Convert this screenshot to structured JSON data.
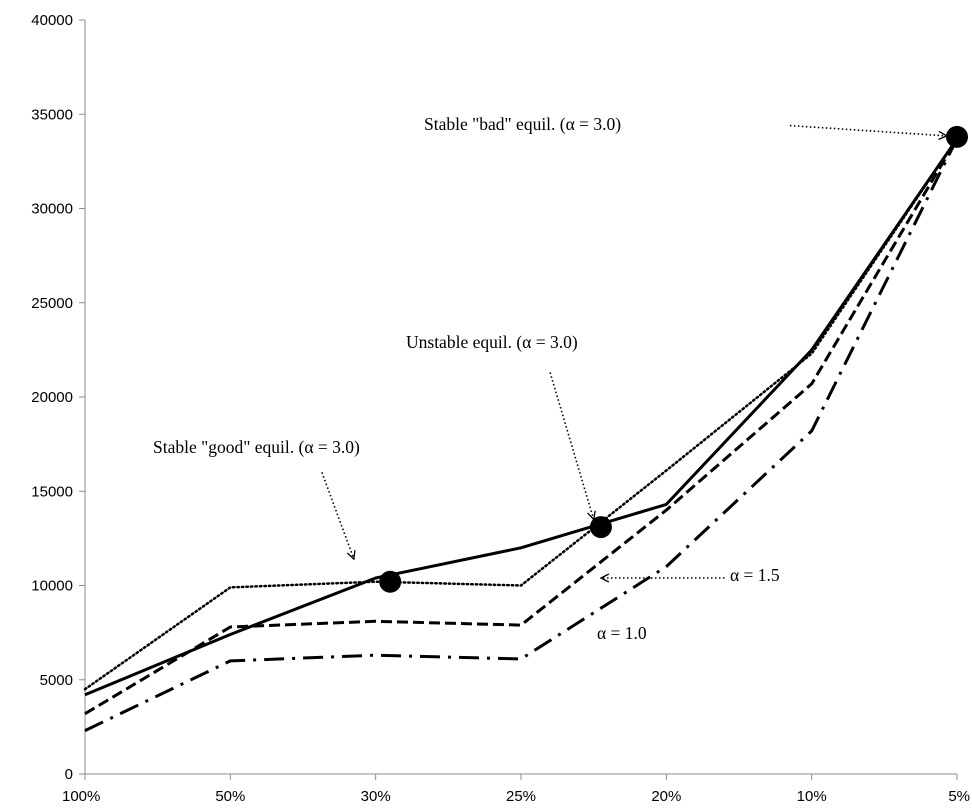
{
  "chart_data": {
    "type": "line",
    "title": "",
    "xlabel": "",
    "ylabel": "",
    "categories": [
      "100%",
      "50%",
      "30%",
      "25%",
      "20%",
      "10%",
      "5%"
    ],
    "ylim": [
      0,
      40000
    ],
    "yticks": [
      0,
      5000,
      10000,
      15000,
      20000,
      25000,
      30000,
      35000,
      40000
    ],
    "ytick_labels": [
      "0",
      "5000",
      "10000",
      "15000",
      "20000",
      "25000",
      "30000",
      "35000",
      "40000"
    ],
    "grid": false,
    "legend": "none",
    "series": [
      {
        "style": "solid",
        "values": [
          4200,
          7400,
          10400,
          12000,
          14300,
          22500,
          33700
        ]
      },
      {
        "style": "dotted",
        "values": [
          4500,
          9900,
          10200,
          10000,
          16100,
          22300,
          33700
        ]
      },
      {
        "style": "dashed",
        "values": [
          3200,
          7800,
          8100,
          7900,
          14000,
          20700,
          33700
        ]
      },
      {
        "style": "dashdot",
        "values": [
          2300,
          6000,
          6300,
          6100,
          11000,
          18200,
          33700
        ]
      }
    ],
    "markers": [
      {
        "x": 2.1,
        "y": 10200
      },
      {
        "x": 3.55,
        "y": 13100
      },
      {
        "x": 6.0,
        "y": 33800
      }
    ],
    "annotations": [
      {
        "text": "Stable \"bad\" equil. (α = 3.0)",
        "arrow_from": [
          4.85,
          34400
        ],
        "arrow_to": [
          5.93,
          33850
        ]
      },
      {
        "text": "Unstable equil. (α = 3.0)",
        "arrow_from": [
          3.2,
          21300
        ],
        "arrow_to": [
          3.5,
          13500
        ]
      },
      {
        "text": "Stable \"good\" equil. (α = 3.0)",
        "arrow_from": [
          1.63,
          16000
        ],
        "arrow_to": [
          1.85,
          11400
        ]
      },
      {
        "text": "α = 1.5",
        "arrow_from": [
          4.4,
          10400
        ],
        "arrow_to": [
          3.55,
          10400
        ]
      },
      {
        "text": "α = 1.0"
      }
    ]
  }
}
